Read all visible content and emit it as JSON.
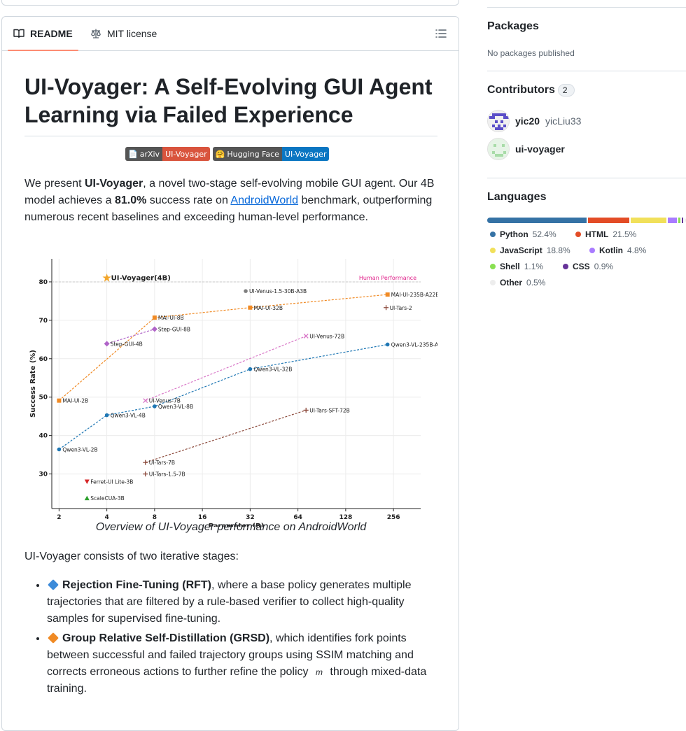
{
  "readme": {
    "tabs": {
      "readme": "README",
      "license": "MIT license"
    },
    "title": "UI-Voyager: A Self-Evolving GUI Agent Learning via Failed Experience",
    "badges": [
      {
        "left": "arXiv",
        "right": "UI-Voyager",
        "icon": "document-icon",
        "color": "#d9543d"
      },
      {
        "left": "Hugging Face",
        "right": "UI-Voyager",
        "icon": "hugging-face-emoji",
        "color": "#0a76c2"
      }
    ],
    "intro": {
      "p1": "We present ",
      "bold1": "UI-Voyager",
      "p2": ", a novel two-stage self-evolving mobile GUI agent. Our 4B model achieves a ",
      "bold2": "81.0%",
      "p3": " success rate on ",
      "link": "AndroidWorld",
      "p4": " benchmark, outperforming numerous recent baselines and exceeding human-level performance."
    },
    "caption": "Overview of UI-Voyager performance on AndroidWorld",
    "stages_text": "UI-Voyager consists of two iterative stages:",
    "stages": [
      {
        "icon": "blue-diamond-icon",
        "icon_color": "#3d8bd9",
        "bold": "Rejection Fine-Tuning (RFT)",
        "text": ", where a base policy generates multiple trajectories that are filtered by a rule-based verifier to collect high-quality samples for supervised fine-tuning."
      },
      {
        "icon": "orange-diamond-icon",
        "icon_color": "#f08a24",
        "bold": "Group Relative Self-Distillation (GRSD)",
        "text": ", which identifies fork points between successful and failed trajectory groups using SSIM matching and corrects erroneous actions to further refine the policy ",
        "math": "m",
        "text2": " through mixed-data training."
      }
    ]
  },
  "sidebar": {
    "packages_title": "Packages",
    "packages_empty": "No packages published",
    "contributors_title": "Contributors",
    "contributors_count": "2",
    "contributors": [
      {
        "login": "yic20",
        "name": "yicLiu33"
      },
      {
        "login": "ui-voyager",
        "name": ""
      }
    ],
    "languages_title": "Languages",
    "languages": [
      {
        "name": "Python",
        "pct": "52.4%",
        "value": 52.4,
        "color": "#3572a5"
      },
      {
        "name": "HTML",
        "pct": "21.5%",
        "value": 21.5,
        "color": "#e34c26"
      },
      {
        "name": "JavaScript",
        "pct": "18.8%",
        "value": 18.8,
        "color": "#f1e05a"
      },
      {
        "name": "Kotlin",
        "pct": "4.8%",
        "value": 4.8,
        "color": "#a97bff"
      },
      {
        "name": "Shell",
        "pct": "1.1%",
        "value": 1.1,
        "color": "#89e051"
      },
      {
        "name": "CSS",
        "pct": "0.9%",
        "value": 0.9,
        "color": "#663399"
      },
      {
        "name": "Other",
        "pct": "0.5%",
        "value": 0.5,
        "color": "#ededed"
      }
    ]
  },
  "chart_data": {
    "type": "scatter",
    "title": "",
    "xlabel": "Parameter (B)",
    "ylabel": "Success Rate (%)",
    "x_scale": "log2",
    "xticks": [
      2,
      4,
      8,
      16,
      32,
      64,
      128,
      256
    ],
    "yticks": [
      30,
      40,
      50,
      60,
      70,
      80
    ],
    "ylim": [
      21,
      86
    ],
    "xlim": [
      1.8,
      380
    ],
    "grid": true,
    "reference_line": {
      "label": "Human Performance",
      "y": 80,
      "color": "#e0218a"
    },
    "series": [
      {
        "name": "UI-Voyager",
        "color": "#f2a52b",
        "marker": "star",
        "connect": false,
        "points": [
          {
            "label": "UI-Voyager(4B)",
            "x": 4,
            "y": 81.0
          }
        ]
      },
      {
        "name": "MAI-UI",
        "color": "#f08a24",
        "marker": "square",
        "connect": true,
        "points": [
          {
            "label": "MAI-UI-2B",
            "x": 2,
            "y": 49.1
          },
          {
            "label": "MAI-UI-8B",
            "x": 8,
            "y": 70.7
          },
          {
            "label": "MAI-UI-32B",
            "x": 32,
            "y": 73.3
          },
          {
            "label": "MAI-UI-235B-A22B",
            "x": 235,
            "y": 76.7
          }
        ]
      },
      {
        "name": "Step-GUI",
        "color": "#b064c8",
        "marker": "diamond",
        "connect": true,
        "points": [
          {
            "label": "Step-GUI-4B",
            "x": 4,
            "y": 63.9
          },
          {
            "label": "Step-GUI-8B",
            "x": 8,
            "y": 67.7
          }
        ]
      },
      {
        "name": "UI-Venus",
        "color": "#d978c8",
        "marker": "x",
        "connect": true,
        "points": [
          {
            "label": "UI-Venus-7B",
            "x": 7,
            "y": 49.1
          },
          {
            "label": "UI-Venus-72B",
            "x": 72,
            "y": 65.9
          }
        ]
      },
      {
        "name": "Qwen3-VL",
        "color": "#1f77b4",
        "marker": "circle",
        "connect": true,
        "points": [
          {
            "label": "Qwen3-VL-2B",
            "x": 2,
            "y": 36.4
          },
          {
            "label": "Qwen3-VL-4B",
            "x": 4,
            "y": 45.3
          },
          {
            "label": "Qwen3-VL-8B",
            "x": 8,
            "y": 47.6
          },
          {
            "label": "Qwen3-VL-32B",
            "x": 32,
            "y": 57.3
          },
          {
            "label": "Qwen3-VL-235B-A22B",
            "x": 235,
            "y": 63.7
          }
        ]
      },
      {
        "name": "UI-Tars",
        "color": "#8c4a3c",
        "marker": "plus",
        "connect": true,
        "points": [
          {
            "label": "UI-Tars-7B",
            "x": 7,
            "y": 33.0
          },
          {
            "label": "UI-Tars-SFT-72B",
            "x": 72,
            "y": 46.6
          }
        ]
      },
      {
        "name": "UI-Tars-2",
        "color": "#8c4a3c",
        "marker": "plus",
        "connect": false,
        "points": [
          {
            "label": "UI-Tars-2",
            "x": 230,
            "y": 73.3
          }
        ]
      },
      {
        "name": "UI-Tars-1.5",
        "color": "#8c4a3c",
        "marker": "plus",
        "connect": false,
        "points": [
          {
            "label": "UI-Tars-1.5-7B",
            "x": 7,
            "y": 30.0
          }
        ]
      },
      {
        "name": "UI-Venus-1.5",
        "color": "#7f7f7f",
        "marker": "circle",
        "connect": false,
        "points": [
          {
            "label": "UI-Venus-1.5-30B-A3B",
            "x": 30,
            "y": 77.6
          }
        ]
      },
      {
        "name": "Ferret-UI",
        "color": "#d62728",
        "marker": "triangle-down",
        "connect": false,
        "points": [
          {
            "label": "Ferret-UI Lite-3B",
            "x": 3,
            "y": 28.0
          }
        ]
      },
      {
        "name": "ScaleCUA",
        "color": "#2ca02c",
        "marker": "triangle-up",
        "connect": false,
        "points": [
          {
            "label": "ScaleCUA-3B",
            "x": 3,
            "y": 23.7
          }
        ]
      }
    ]
  }
}
